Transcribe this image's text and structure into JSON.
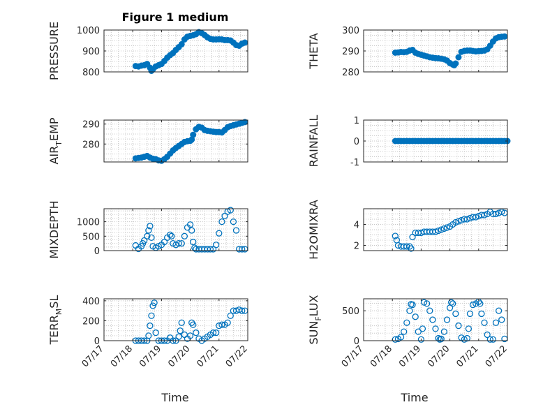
{
  "figure": {
    "title": "Figure 1 medium",
    "xlabel": "Time",
    "marker_color": "#0072BD",
    "axis_color": "#262626",
    "grid_color": "#c8c8c8"
  },
  "chart_data": [
    {
      "type": "scatter",
      "ylabel": "PRESSURE",
      "ylabel_sub": "",
      "ylabel_rest": "",
      "xlim": [
        0,
        5
      ],
      "xtick_values": [
        0,
        1,
        2,
        3,
        4,
        5
      ],
      "xtick_labels": [],
      "ylim": [
        800,
        1000
      ],
      "ytick_values": [
        800,
        900,
        1000
      ],
      "ytick_labels": [
        "800",
        "900",
        "1000"
      ],
      "marker": "filled",
      "x": [
        1.1,
        1.2,
        1.3,
        1.4,
        1.5,
        1.6,
        1.65,
        1.7,
        1.8,
        1.9,
        2.0,
        2.1,
        2.2,
        2.3,
        2.4,
        2.5,
        2.6,
        2.7,
        2.8,
        2.9,
        3.0,
        3.1,
        3.2,
        3.3,
        3.4,
        3.5,
        3.6,
        3.7,
        3.8,
        3.9,
        4.0,
        4.1,
        4.2,
        4.3,
        4.4,
        4.5,
        4.6,
        4.7,
        4.8,
        4.9
      ],
      "y": [
        828,
        826,
        830,
        832,
        838,
        820,
        805,
        812,
        826,
        832,
        838,
        852,
        868,
        880,
        890,
        905,
        918,
        932,
        955,
        968,
        972,
        975,
        980,
        990,
        985,
        976,
        965,
        958,
        955,
        955,
        956,
        955,
        952,
        952,
        950,
        940,
        928,
        925,
        935,
        940
      ]
    },
    {
      "type": "scatter",
      "ylabel": "THETA",
      "ylabel_sub": "",
      "ylabel_rest": "",
      "xlim": [
        0,
        5
      ],
      "xtick_values": [
        0,
        1,
        2,
        3,
        4,
        5
      ],
      "xtick_labels": [],
      "ylim": [
        280,
        300
      ],
      "ytick_values": [
        280,
        290,
        300
      ],
      "ytick_labels": [
        "280",
        "290",
        "300"
      ],
      "marker": "filled",
      "x": [
        1.1,
        1.2,
        1.3,
        1.4,
        1.5,
        1.6,
        1.7,
        1.8,
        1.9,
        2.0,
        2.1,
        2.2,
        2.3,
        2.4,
        2.5,
        2.6,
        2.7,
        2.8,
        2.9,
        3.0,
        3.1,
        3.15,
        3.2,
        3.3,
        3.4,
        3.5,
        3.6,
        3.7,
        3.8,
        3.9,
        4.0,
        4.1,
        4.2,
        4.3,
        4.4,
        4.5,
        4.6,
        4.7,
        4.8,
        4.9
      ],
      "y": [
        289.2,
        289.3,
        289.5,
        289.4,
        289.6,
        290.2,
        290.5,
        289.2,
        288.6,
        288.2,
        287.8,
        287.4,
        287.0,
        286.8,
        286.6,
        286.5,
        286.3,
        286.0,
        285.4,
        284.2,
        283.5,
        283.2,
        284.0,
        287.0,
        289.6,
        290.0,
        290.2,
        290.2,
        290.0,
        289.8,
        289.9,
        290.0,
        290.2,
        290.8,
        292.5,
        294.5,
        296.0,
        296.6,
        296.8,
        296.9
      ]
    },
    {
      "type": "scatter",
      "ylabel": "AIR",
      "ylabel_sub": "T",
      "ylabel_rest": "EMP",
      "xlim": [
        0,
        5
      ],
      "xtick_values": [
        0,
        1,
        2,
        3,
        4,
        5
      ],
      "xtick_labels": [],
      "ylim": [
        271,
        292
      ],
      "ytick_values": [
        280,
        290
      ],
      "ytick_labels": [
        "280",
        "290"
      ],
      "marker": "filled",
      "x": [
        1.1,
        1.2,
        1.3,
        1.4,
        1.5,
        1.6,
        1.7,
        1.8,
        1.9,
        2.0,
        2.1,
        2.2,
        2.3,
        2.4,
        2.5,
        2.6,
        2.7,
        2.8,
        2.9,
        3.0,
        3.05,
        3.1,
        3.2,
        3.3,
        3.4,
        3.5,
        3.6,
        3.7,
        3.8,
        3.9,
        4.0,
        4.1,
        4.2,
        4.3,
        4.4,
        4.5,
        4.6,
        4.7,
        4.8,
        4.9
      ],
      "y": [
        272.8,
        273.0,
        273.2,
        273.6,
        274.0,
        273.2,
        272.6,
        272.4,
        271.8,
        271.6,
        272.4,
        273.6,
        275.2,
        276.8,
        278.0,
        279.0,
        280.0,
        281.0,
        281.4,
        281.6,
        282.2,
        284.6,
        287.4,
        288.6,
        288.2,
        287.0,
        286.6,
        286.4,
        286.2,
        286.0,
        286.0,
        285.8,
        287.0,
        288.4,
        289.0,
        289.4,
        289.8,
        290.2,
        290.6,
        291.0
      ]
    },
    {
      "type": "scatter",
      "ylabel": "RAINFALL",
      "ylabel_sub": "",
      "ylabel_rest": "",
      "xlim": [
        0,
        5
      ],
      "xtick_values": [
        0,
        1,
        2,
        3,
        4,
        5
      ],
      "xtick_labels": [],
      "ylim": [
        -1,
        1
      ],
      "ytick_values": [
        -1,
        0,
        1
      ],
      "ytick_labels": [
        "-1",
        "0",
        "1"
      ],
      "marker": "filled",
      "x": [
        1.1,
        1.2,
        1.3,
        1.4,
        1.5,
        1.6,
        1.7,
        1.8,
        1.9,
        2.0,
        2.1,
        2.2,
        2.3,
        2.4,
        2.5,
        2.6,
        2.7,
        2.8,
        2.9,
        3.0,
        3.1,
        3.2,
        3.3,
        3.4,
        3.5,
        3.6,
        3.7,
        3.8,
        3.9,
        4.0,
        4.1,
        4.2,
        4.3,
        4.4,
        4.5,
        4.6,
        4.7,
        4.8,
        4.9,
        5.0
      ],
      "y": [
        0,
        0,
        0,
        0,
        0,
        0,
        0,
        0,
        0,
        0,
        0,
        0,
        0,
        0,
        0,
        0,
        0,
        0,
        0,
        0,
        0,
        0,
        0,
        0,
        0,
        0,
        0,
        0,
        0,
        0,
        0,
        0,
        0,
        0,
        0,
        0,
        0,
        0,
        0,
        0
      ]
    },
    {
      "type": "scatter",
      "ylabel": "MIXDEPTH",
      "ylabel_sub": "",
      "ylabel_rest": "",
      "xlim": [
        0,
        5
      ],
      "xtick_values": [
        0,
        1,
        2,
        3,
        4,
        5
      ],
      "xtick_labels": [],
      "ylim": [
        0,
        1450
      ],
      "ytick_values": [
        0,
        500,
        1000
      ],
      "ytick_labels": [
        "0",
        "500",
        "1000"
      ],
      "marker": "open",
      "x": [
        1.1,
        1.2,
        1.3,
        1.35,
        1.4,
        1.5,
        1.55,
        1.6,
        1.65,
        1.7,
        1.8,
        1.9,
        2.0,
        2.1,
        2.2,
        2.3,
        2.35,
        2.4,
        2.5,
        2.6,
        2.7,
        2.8,
        2.9,
        3.0,
        3.05,
        3.1,
        3.15,
        3.2,
        3.3,
        3.4,
        3.5,
        3.6,
        3.7,
        3.8,
        3.9,
        4.0,
        4.1,
        4.2,
        4.3,
        4.4,
        4.5,
        4.6,
        4.7,
        4.8,
        4.9
      ],
      "y": [
        180,
        60,
        150,
        250,
        350,
        500,
        700,
        850,
        450,
        150,
        100,
        150,
        200,
        300,
        450,
        550,
        500,
        250,
        200,
        250,
        250,
        500,
        800,
        900,
        700,
        300,
        100,
        50,
        50,
        50,
        50,
        50,
        50,
        50,
        200,
        600,
        1000,
        1200,
        1350,
        1400,
        1000,
        700,
        50,
        50,
        50
      ]
    },
    {
      "type": "scatter",
      "ylabel": "H2OMIXRA",
      "ylabel_sub": "",
      "ylabel_rest": "",
      "xlim": [
        0,
        5
      ],
      "xtick_values": [
        0,
        1,
        2,
        3,
        4,
        5
      ],
      "xtick_labels": [],
      "ylim": [
        1.5,
        5.5
      ],
      "ytick_values": [
        2,
        4
      ],
      "ytick_labels": [
        "2",
        "4"
      ],
      "marker": "open",
      "x": [
        1.1,
        1.15,
        1.2,
        1.3,
        1.4,
        1.5,
        1.6,
        1.65,
        1.7,
        1.8,
        1.9,
        2.0,
        2.1,
        2.2,
        2.3,
        2.4,
        2.5,
        2.6,
        2.7,
        2.8,
        2.9,
        3.0,
        3.1,
        3.2,
        3.3,
        3.4,
        3.5,
        3.6,
        3.7,
        3.8,
        3.9,
        4.0,
        4.1,
        4.2,
        4.3,
        4.4,
        4.5,
        4.6,
        4.7,
        4.8,
        4.9
      ],
      "y": [
        2.9,
        2.5,
        2.0,
        1.9,
        1.9,
        1.9,
        1.9,
        1.7,
        2.8,
        3.2,
        3.2,
        3.2,
        3.3,
        3.3,
        3.3,
        3.3,
        3.3,
        3.4,
        3.5,
        3.6,
        3.7,
        3.8,
        4.0,
        4.2,
        4.3,
        4.4,
        4.5,
        4.5,
        4.6,
        4.7,
        4.7,
        4.8,
        4.9,
        4.9,
        5.0,
        5.2,
        5.0,
        5.0,
        5.1,
        5.2,
        5.1
      ]
    },
    {
      "type": "scatter",
      "ylabel": "TERR",
      "ylabel_sub": "M",
      "ylabel_rest": "SL",
      "xlim": [
        0,
        5
      ],
      "xtick_values": [
        0,
        1,
        2,
        3,
        4,
        5
      ],
      "xtick_labels": [
        "07/17",
        "07/18",
        "07/19",
        "07/20",
        "07/21",
        "07/22"
      ],
      "ylim": [
        0,
        420
      ],
      "ytick_values": [
        0,
        200,
        400
      ],
      "ytick_labels": [
        "0",
        "200",
        "400"
      ],
      "marker": "open",
      "x": [
        1.1,
        1.2,
        1.3,
        1.4,
        1.5,
        1.55,
        1.6,
        1.65,
        1.7,
        1.75,
        1.8,
        1.9,
        2.0,
        2.1,
        2.2,
        2.3,
        2.4,
        2.5,
        2.6,
        2.65,
        2.7,
        2.8,
        2.9,
        3.0,
        3.05,
        3.1,
        3.2,
        3.3,
        3.4,
        3.5,
        3.6,
        3.7,
        3.8,
        3.9,
        4.0,
        4.1,
        4.2,
        4.3,
        4.4,
        4.5,
        4.6,
        4.7,
        4.8,
        4.9
      ],
      "y": [
        0,
        0,
        0,
        0,
        0,
        50,
        150,
        250,
        350,
        380,
        80,
        0,
        0,
        0,
        0,
        30,
        0,
        0,
        40,
        100,
        180,
        60,
        20,
        50,
        180,
        160,
        80,
        20,
        0,
        20,
        40,
        60,
        80,
        80,
        150,
        160,
        160,
        180,
        250,
        300,
        300,
        310,
        300,
        300
      ]
    },
    {
      "type": "scatter",
      "ylabel": "SUN",
      "ylabel_sub": "F",
      "ylabel_rest": "LUX",
      "xlim": [
        0,
        5
      ],
      "xtick_values": [
        0,
        1,
        2,
        3,
        4,
        5
      ],
      "xtick_labels": [
        "07/17",
        "07/18",
        "07/19",
        "07/20",
        "07/21",
        "07/22"
      ],
      "ylim": [
        0,
        700
      ],
      "ytick_values": [
        0,
        500
      ],
      "ytick_labels": [
        "0",
        "500"
      ],
      "marker": "open",
      "x": [
        1.1,
        1.2,
        1.3,
        1.4,
        1.5,
        1.6,
        1.65,
        1.7,
        1.8,
        1.9,
        2.0,
        2.05,
        2.1,
        2.2,
        2.3,
        2.4,
        2.5,
        2.6,
        2.65,
        2.7,
        2.8,
        2.9,
        3.0,
        3.05,
        3.1,
        3.2,
        3.3,
        3.4,
        3.5,
        3.6,
        3.65,
        3.7,
        3.8,
        3.9,
        4.0,
        4.05,
        4.1,
        4.2,
        4.3,
        4.4,
        4.5,
        4.6,
        4.7,
        4.8,
        4.9
      ],
      "y": [
        20,
        30,
        60,
        150,
        300,
        500,
        610,
        600,
        400,
        150,
        20,
        200,
        640,
        620,
        500,
        350,
        200,
        40,
        20,
        30,
        150,
        350,
        550,
        640,
        620,
        450,
        250,
        50,
        20,
        40,
        200,
        450,
        600,
        620,
        650,
        620,
        450,
        300,
        100,
        20,
        20,
        300,
        500,
        350,
        30
      ]
    }
  ]
}
